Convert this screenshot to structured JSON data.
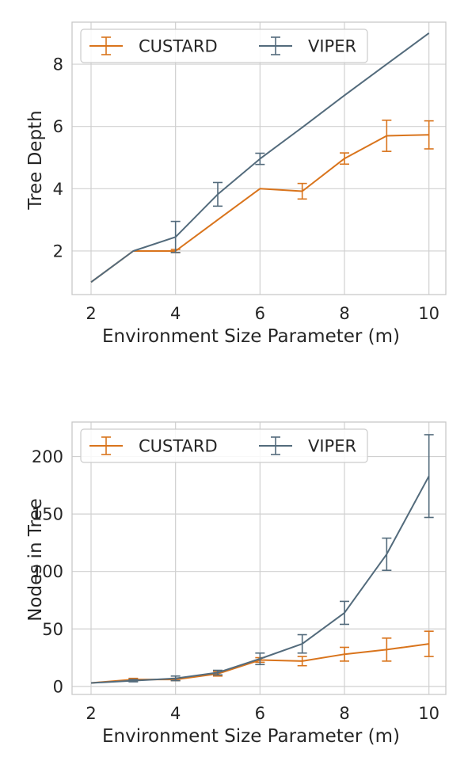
{
  "colors": {
    "CUSTARD": "#d9741c",
    "VIPER": "#536b7c",
    "grid": "#d0d0d0",
    "spine": "#c8c8c8"
  },
  "chart_data": [
    {
      "type": "line",
      "xlabel": "Environment Size Parameter (m)",
      "ylabel": "Tree Depth",
      "xlim": [
        1.55,
        10.4
      ],
      "ylim": [
        0.6,
        9.35
      ],
      "xticks": [
        2,
        4,
        6,
        8,
        10
      ],
      "yticks": [
        2,
        4,
        6,
        8
      ],
      "grid": true,
      "legend": "top-left, 2 columns",
      "x": [
        2,
        3,
        4,
        5,
        6,
        7,
        8,
        9,
        10
      ],
      "series": [
        {
          "name": "CUSTARD",
          "values": [
            1,
            2,
            2,
            3,
            4,
            3.92,
            4.97,
            5.7,
            5.73
          ],
          "err": [
            0,
            0,
            0.05,
            0,
            0,
            0.25,
            0.18,
            0.5,
            0.45
          ]
        },
        {
          "name": "VIPER",
          "values": [
            1,
            2,
            2.45,
            3.82,
            4.96,
            5.97,
            7,
            8,
            9
          ],
          "err": [
            0,
            0,
            0.5,
            0.38,
            0.18,
            0,
            0,
            0,
            0
          ]
        }
      ]
    },
    {
      "type": "line",
      "xlabel": "Environment Size Parameter (m)",
      "ylabel": "Nodes in Tree",
      "xlim": [
        1.55,
        10.4
      ],
      "ylim": [
        -7,
        230
      ],
      "xticks": [
        2,
        4,
        6,
        8,
        10
      ],
      "yticks": [
        0,
        50,
        100,
        150,
        200
      ],
      "grid": true,
      "legend": "top-left, 2 columns",
      "x": [
        2,
        3,
        4,
        5,
        6,
        7,
        8,
        9,
        10
      ],
      "series": [
        {
          "name": "CUSTARD",
          "values": [
            3,
            6,
            6,
            11,
            23,
            22,
            28,
            32,
            37
          ],
          "err": [
            0,
            1,
            1,
            2,
            2,
            4,
            6,
            10,
            11
          ]
        },
        {
          "name": "VIPER",
          "values": [
            3,
            5,
            7,
            12,
            24,
            37,
            64,
            115,
            183
          ],
          "err": [
            0,
            1,
            2,
            2,
            5,
            8,
            10,
            14,
            36
          ]
        }
      ]
    }
  ]
}
